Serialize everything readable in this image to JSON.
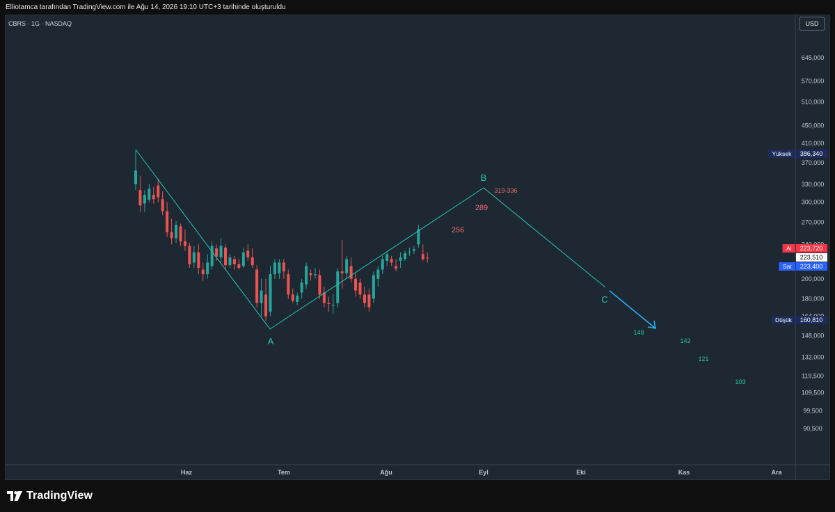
{
  "header": {
    "caption": "Elliotamca tarafından TradingView.com ile Ağu 14, 2026 19:10 UTC+3 tarihinde oluşturuldu"
  },
  "chart_header": {
    "symbol": "CBRS · 1G · NASDAQ",
    "currency": "USD"
  },
  "footer": {
    "logo_text": "TradingView"
  },
  "colors": {
    "up": "#26a69a",
    "down": "#ef5350",
    "wave_line": "#26c6b6",
    "arrow": "#29b6f6",
    "target_red": "#f06b6b",
    "target_green": "#26c6a0",
    "high_badge": "#1c2b5a",
    "sell_badge": "#2962ff",
    "buy_badge": "#f23645"
  },
  "chart_data": {
    "type": "candlestick",
    "y_scale": "log",
    "ylim": [
      82000,
      760000
    ],
    "y_ticks": [
      "645,000",
      "570,000",
      "510,000",
      "450,000",
      "410,000",
      "370,000",
      "330,000",
      "300,000",
      "270,000",
      "240,000",
      "200,000",
      "180,000",
      "164,000",
      "148,000",
      "132,000",
      "119,500",
      "109,500",
      "99,500",
      "90,500"
    ],
    "x_ticks": [
      "Haz",
      "Tem",
      "Ağu",
      "Eyl",
      "Eki",
      "Kas",
      "Ara"
    ],
    "candles": [
      {
        "o": 330000,
        "h": 395000,
        "l": 320000,
        "c": 355000
      },
      {
        "o": 320000,
        "h": 345000,
        "l": 285000,
        "c": 295000
      },
      {
        "o": 298000,
        "h": 320000,
        "l": 285000,
        "c": 312000
      },
      {
        "o": 304000,
        "h": 330000,
        "l": 300000,
        "c": 322000
      },
      {
        "o": 312000,
        "h": 325000,
        "l": 298000,
        "c": 305000
      },
      {
        "o": 328000,
        "h": 340000,
        "l": 300000,
        "c": 308000
      },
      {
        "o": 305000,
        "h": 318000,
        "l": 280000,
        "c": 286000
      },
      {
        "o": 286000,
        "h": 300000,
        "l": 250000,
        "c": 256000
      },
      {
        "o": 256000,
        "h": 275000,
        "l": 240000,
        "c": 248000
      },
      {
        "o": 248000,
        "h": 272000,
        "l": 242000,
        "c": 266000
      },
      {
        "o": 264000,
        "h": 268000,
        "l": 238000,
        "c": 244000
      },
      {
        "o": 244000,
        "h": 260000,
        "l": 232000,
        "c": 238000
      },
      {
        "o": 238000,
        "h": 242000,
        "l": 212000,
        "c": 216000
      },
      {
        "o": 218000,
        "h": 238000,
        "l": 212000,
        "c": 230000
      },
      {
        "o": 230000,
        "h": 240000,
        "l": 205000,
        "c": 212000
      },
      {
        "o": 210000,
        "h": 218000,
        "l": 198000,
        "c": 205000
      },
      {
        "o": 205000,
        "h": 228000,
        "l": 200000,
        "c": 218000
      },
      {
        "o": 214000,
        "h": 244000,
        "l": 210000,
        "c": 238000
      },
      {
        "o": 235000,
        "h": 240000,
        "l": 220000,
        "c": 225000
      },
      {
        "o": 224000,
        "h": 248000,
        "l": 218000,
        "c": 238000
      },
      {
        "o": 236000,
        "h": 240000,
        "l": 210000,
        "c": 215000
      },
      {
        "o": 215000,
        "h": 228000,
        "l": 212000,
        "c": 224000
      },
      {
        "o": 222000,
        "h": 226000,
        "l": 210000,
        "c": 216000
      },
      {
        "o": 216000,
        "h": 222000,
        "l": 210000,
        "c": 212000
      },
      {
        "o": 214000,
        "h": 236000,
        "l": 212000,
        "c": 230000
      },
      {
        "o": 232000,
        "h": 240000,
        "l": 220000,
        "c": 224000
      },
      {
        "o": 224000,
        "h": 235000,
        "l": 212000,
        "c": 215000
      },
      {
        "o": 210000,
        "h": 215000,
        "l": 172000,
        "c": 176000
      },
      {
        "o": 176000,
        "h": 200000,
        "l": 164000,
        "c": 188000
      },
      {
        "o": 184000,
        "h": 200000,
        "l": 160000,
        "c": 164000
      },
      {
        "o": 168000,
        "h": 214000,
        "l": 164000,
        "c": 205000
      },
      {
        "o": 205000,
        "h": 222000,
        "l": 200000,
        "c": 218000
      },
      {
        "o": 206000,
        "h": 222000,
        "l": 200000,
        "c": 218000
      },
      {
        "o": 218000,
        "h": 222000,
        "l": 200000,
        "c": 208000
      },
      {
        "o": 205000,
        "h": 210000,
        "l": 180000,
        "c": 184000
      },
      {
        "o": 184000,
        "h": 190000,
        "l": 176000,
        "c": 178000
      },
      {
        "o": 177000,
        "h": 186000,
        "l": 174000,
        "c": 183000
      },
      {
        "o": 186000,
        "h": 200000,
        "l": 180000,
        "c": 196000
      },
      {
        "o": 194000,
        "h": 218000,
        "l": 190000,
        "c": 214000
      },
      {
        "o": 206000,
        "h": 210000,
        "l": 198000,
        "c": 204000
      },
      {
        "o": 204000,
        "h": 212000,
        "l": 200000,
        "c": 205000
      },
      {
        "o": 204000,
        "h": 210000,
        "l": 180000,
        "c": 184000
      },
      {
        "o": 186000,
        "h": 192000,
        "l": 172000,
        "c": 176000
      },
      {
        "o": 176000,
        "h": 182000,
        "l": 168000,
        "c": 175000
      },
      {
        "o": 174000,
        "h": 184000,
        "l": 166000,
        "c": 174000
      },
      {
        "o": 176000,
        "h": 212000,
        "l": 172000,
        "c": 208000
      },
      {
        "o": 208000,
        "h": 246000,
        "l": 190000,
        "c": 206000
      },
      {
        "o": 206000,
        "h": 226000,
        "l": 200000,
        "c": 222000
      },
      {
        "o": 214000,
        "h": 224000,
        "l": 196000,
        "c": 200000
      },
      {
        "o": 200000,
        "h": 206000,
        "l": 182000,
        "c": 188000
      },
      {
        "o": 196000,
        "h": 200000,
        "l": 180000,
        "c": 184000
      },
      {
        "o": 184000,
        "h": 192000,
        "l": 172000,
        "c": 176000
      },
      {
        "o": 184000,
        "h": 190000,
        "l": 168000,
        "c": 172000
      },
      {
        "o": 180000,
        "h": 208000,
        "l": 176000,
        "c": 204000
      },
      {
        "o": 200000,
        "h": 214000,
        "l": 192000,
        "c": 210000
      },
      {
        "o": 210000,
        "h": 226000,
        "l": 205000,
        "c": 222000
      },
      {
        "o": 220000,
        "h": 232000,
        "l": 214000,
        "c": 228000
      },
      {
        "o": 222000,
        "h": 226000,
        "l": 214000,
        "c": 218000
      },
      {
        "o": 214000,
        "h": 222000,
        "l": 208000,
        "c": 211000
      },
      {
        "o": 220000,
        "h": 230000,
        "l": 212000,
        "c": 224000
      },
      {
        "o": 222000,
        "h": 232000,
        "l": 220000,
        "c": 229000
      },
      {
        "o": 230000,
        "h": 236000,
        "l": 226000,
        "c": 231000
      },
      {
        "o": 232000,
        "h": 238000,
        "l": 228000,
        "c": 234000
      },
      {
        "o": 240000,
        "h": 266000,
        "l": 236000,
        "c": 260000
      },
      {
        "o": 228000,
        "h": 240000,
        "l": 220000,
        "c": 222000
      },
      {
        "o": 223720,
        "h": 230000,
        "l": 218000,
        "c": 223510
      }
    ],
    "elliott_labels": [
      {
        "label": "A",
        "value": 157000
      },
      {
        "label": "B",
        "value": 324000
      },
      {
        "label": "C",
        "value": 190000
      }
    ],
    "targets_up": [
      "256",
      "289",
      "319-336"
    ],
    "targets_down": [
      "148",
      "142",
      "121",
      "103"
    ],
    "price_badges": {
      "high": {
        "label": "Yüksek",
        "value": "386,340"
      },
      "buy": {
        "label": "Al",
        "value": "223,720"
      },
      "last": {
        "value": "223,510"
      },
      "sell": {
        "label": "Sat",
        "value": "223,400"
      },
      "low": {
        "label": "Düşük",
        "value": "160,810"
      }
    }
  }
}
